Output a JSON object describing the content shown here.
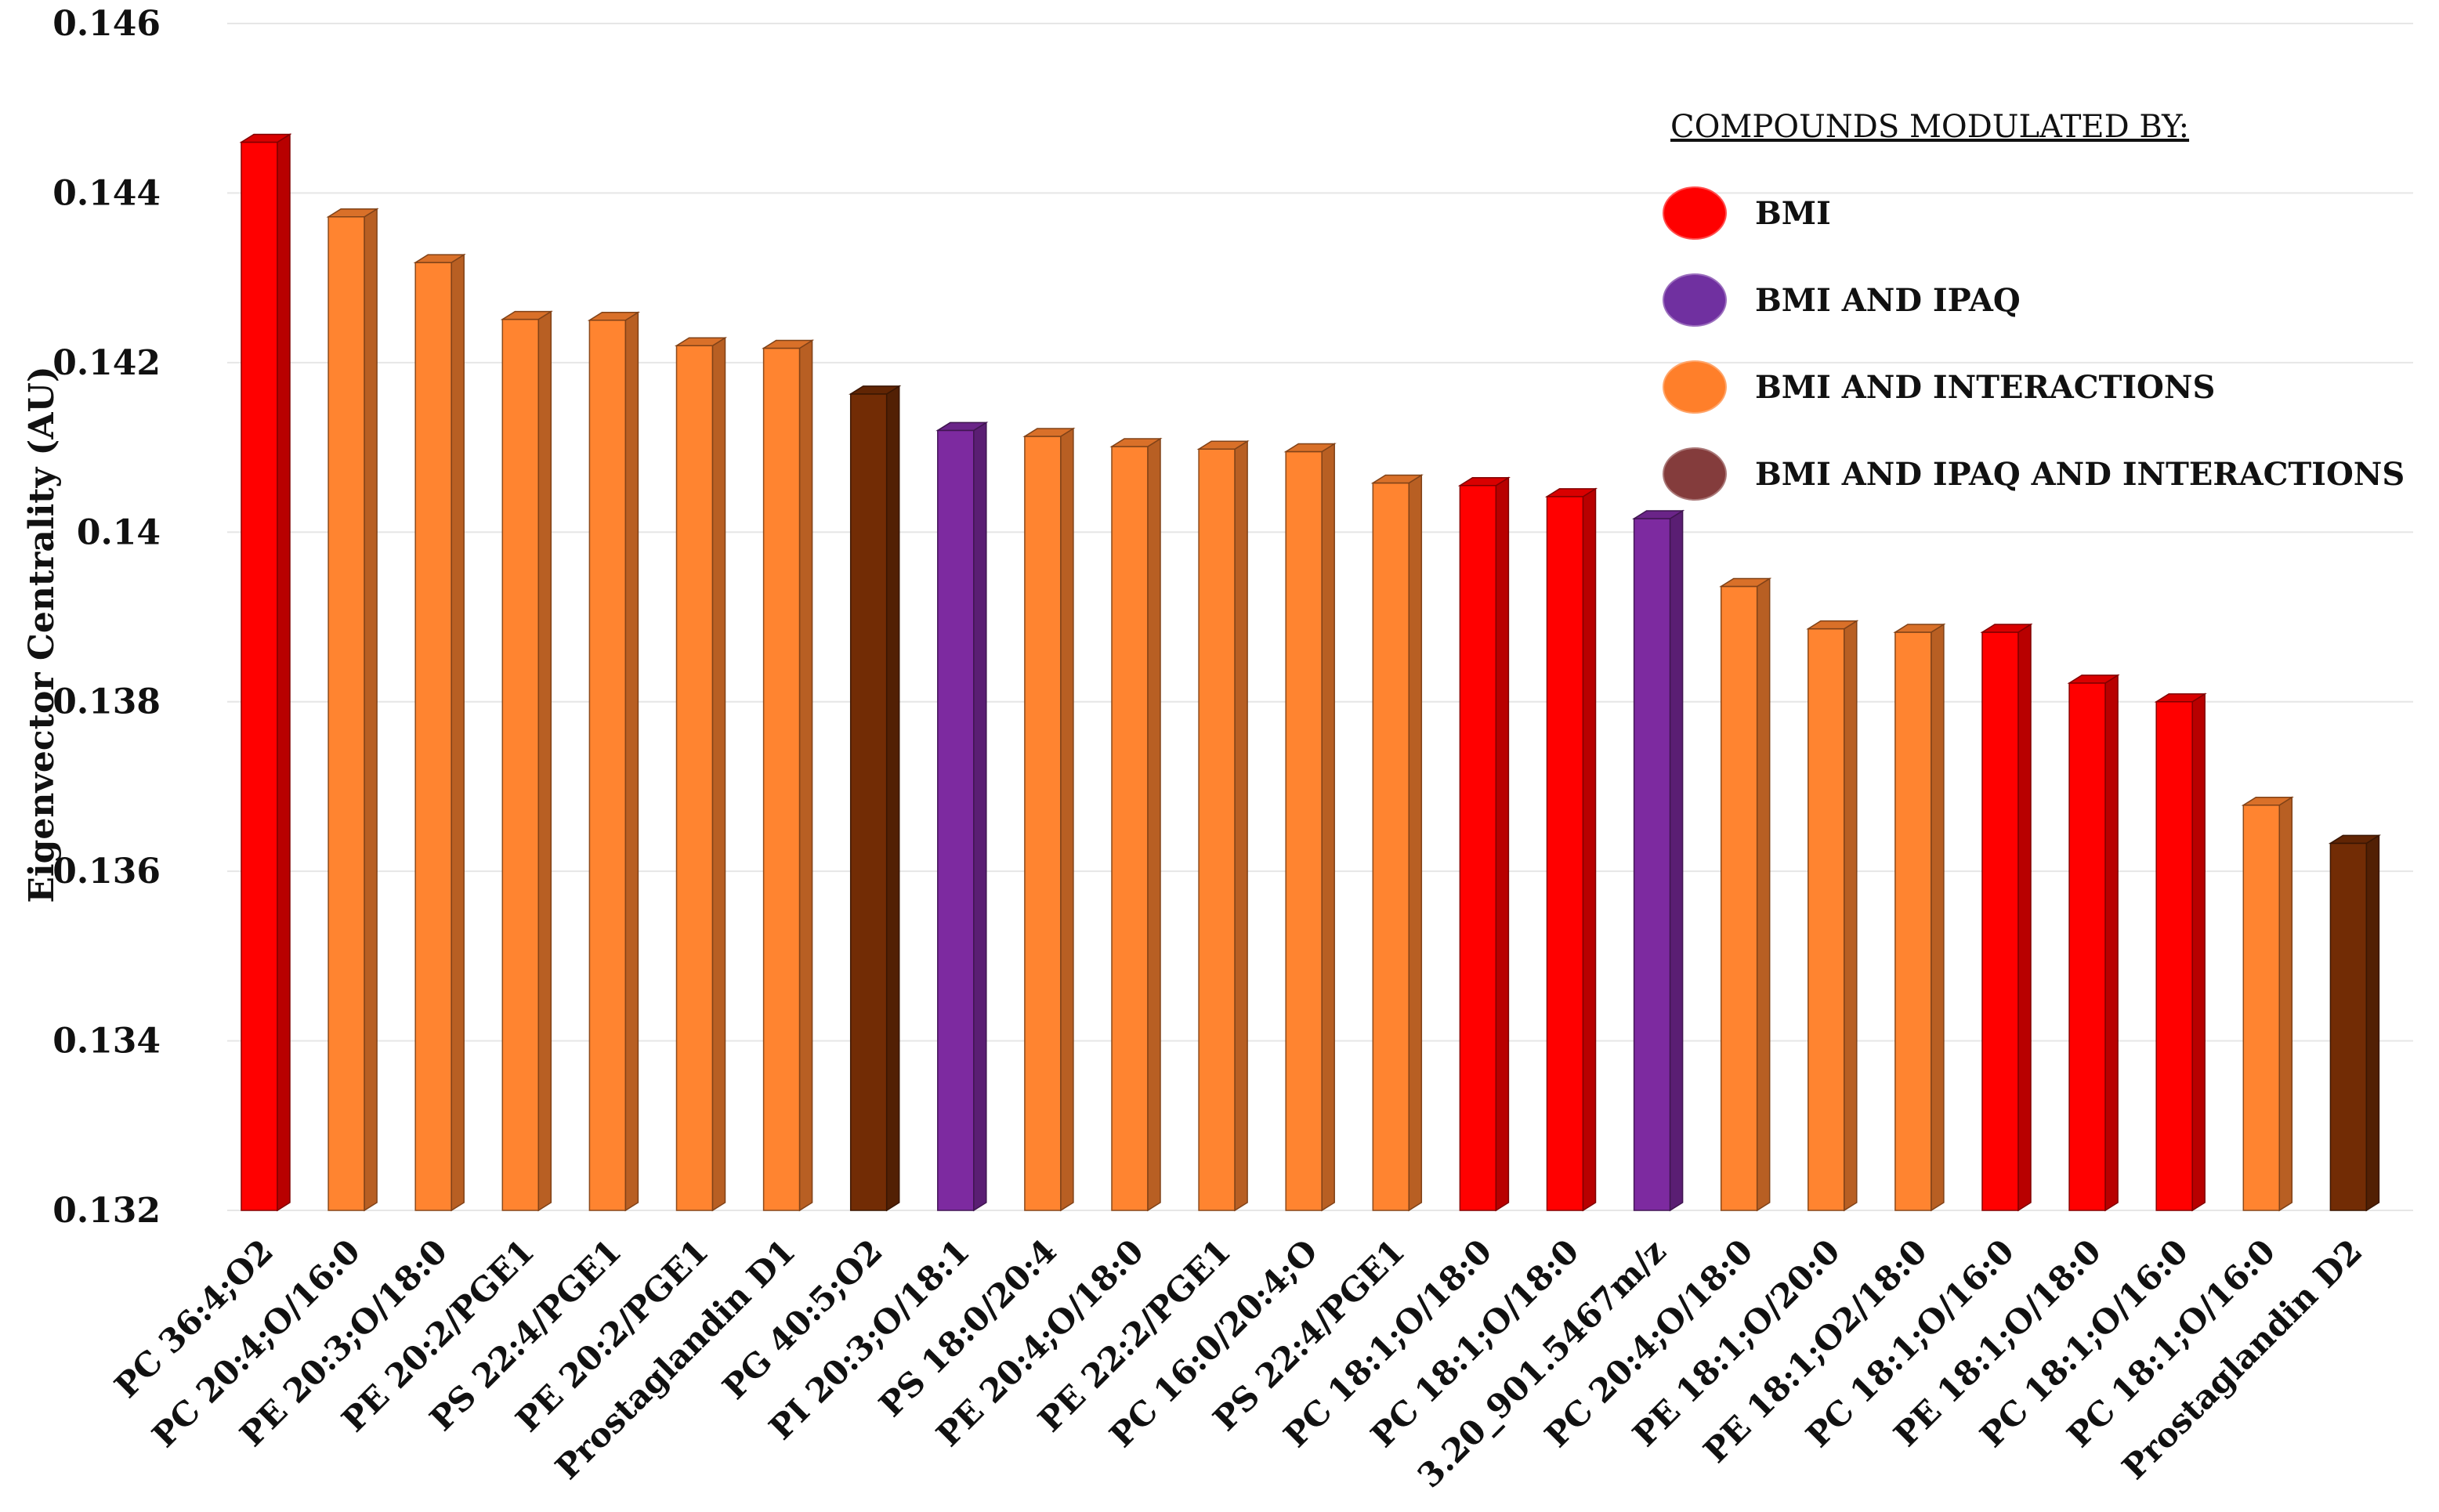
{
  "chart_data": {
    "type": "bar",
    "title": "",
    "xlabel": "",
    "ylabel": "Eigenvector Centrality (AU)",
    "ylim": [
      0.132,
      0.146
    ],
    "yticks": [
      0.132,
      0.134,
      0.136,
      0.138,
      0.14,
      0.142,
      0.144,
      0.146
    ],
    "ytick_labels": [
      "0.132",
      "0.134",
      "0.136",
      "0.138",
      "0.14",
      "0.142",
      "0.144",
      "0.146"
    ],
    "grid": true,
    "categories": [
      "PC 36:4;O2",
      "PC 20:4;O/16:0",
      "PE 20:3;O/18:0",
      "PE 20:2/PGE1",
      "PS 22:4/PGE1",
      "PE 20:2/PGE1",
      "Prostaglandin D1",
      "PG 40:5;O2",
      "PI 20:3;O/18:1",
      "PS 18:0/20:4",
      "PE 20:4;O/18:0",
      "PE 22:2/PGE1",
      "PC 16:0/20:4;O",
      "PS 22:4/PGE1",
      "PC 18:1;O/18:0",
      "PC 18:1;O/18:0",
      "3.20_901.5467m/z",
      "PC 20:4;O/18:0",
      "PE 18:1;O/20:0",
      "PE 18:1;O2/18:0",
      "PC 18:1;O/16:0",
      "PE 18:1;O/18:0",
      "PC 18:1;O/16:0",
      "PC 18:1;O/16:0",
      "Prostaglandin D2"
    ],
    "values": [
      0.1446,
      0.14372,
      0.14318,
      0.14251,
      0.1425,
      0.1422,
      0.14217,
      0.14163,
      0.1412,
      0.14113,
      0.14101,
      0.14098,
      0.14095,
      0.14058,
      0.14055,
      0.14042,
      0.14016,
      0.13936,
      0.13886,
      0.13882,
      0.13882,
      0.13822,
      0.138,
      0.13678,
      0.13633
    ],
    "groups": [
      "BMI",
      "BMI AND INTERACTIONS",
      "BMI AND INTERACTIONS",
      "BMI AND INTERACTIONS",
      "BMI AND INTERACTIONS",
      "BMI AND INTERACTIONS",
      "BMI AND INTERACTIONS",
      "BMI AND IPAQ  AND INTERACTIONS",
      "BMI AND IPAQ",
      "BMI AND INTERACTIONS",
      "BMI AND INTERACTIONS",
      "BMI AND INTERACTIONS",
      "BMI AND INTERACTIONS",
      "BMI AND INTERACTIONS",
      "BMI",
      "BMI",
      "BMI AND IPAQ",
      "BMI AND INTERACTIONS",
      "BMI AND INTERACTIONS",
      "BMI AND INTERACTIONS",
      "BMI",
      "BMI",
      "BMI",
      "BMI AND INTERACTIONS",
      "BMI AND IPAQ  AND INTERACTIONS"
    ],
    "legend": {
      "title": "COMPOUNDS MODULATED BY:",
      "position": "top-right",
      "entries": [
        {
          "label": "BMI",
          "color": "#ff0000"
        },
        {
          "label": "BMI AND IPAQ",
          "color": "#7030a0"
        },
        {
          "label": "BMI AND INTERACTIONS",
          "color": "#ff7f2a"
        },
        {
          "label": "BMI AND IPAQ  AND INTERACTIONS",
          "color": "#843c3c"
        }
      ]
    },
    "bar_colors": {
      "BMI": "#ff0000",
      "BMI AND IPAQ": "#7d2aa0",
      "BMI AND INTERACTIONS": "#ff8430",
      "BMI AND IPAQ  AND INTERACTIONS": "#722c05"
    }
  }
}
